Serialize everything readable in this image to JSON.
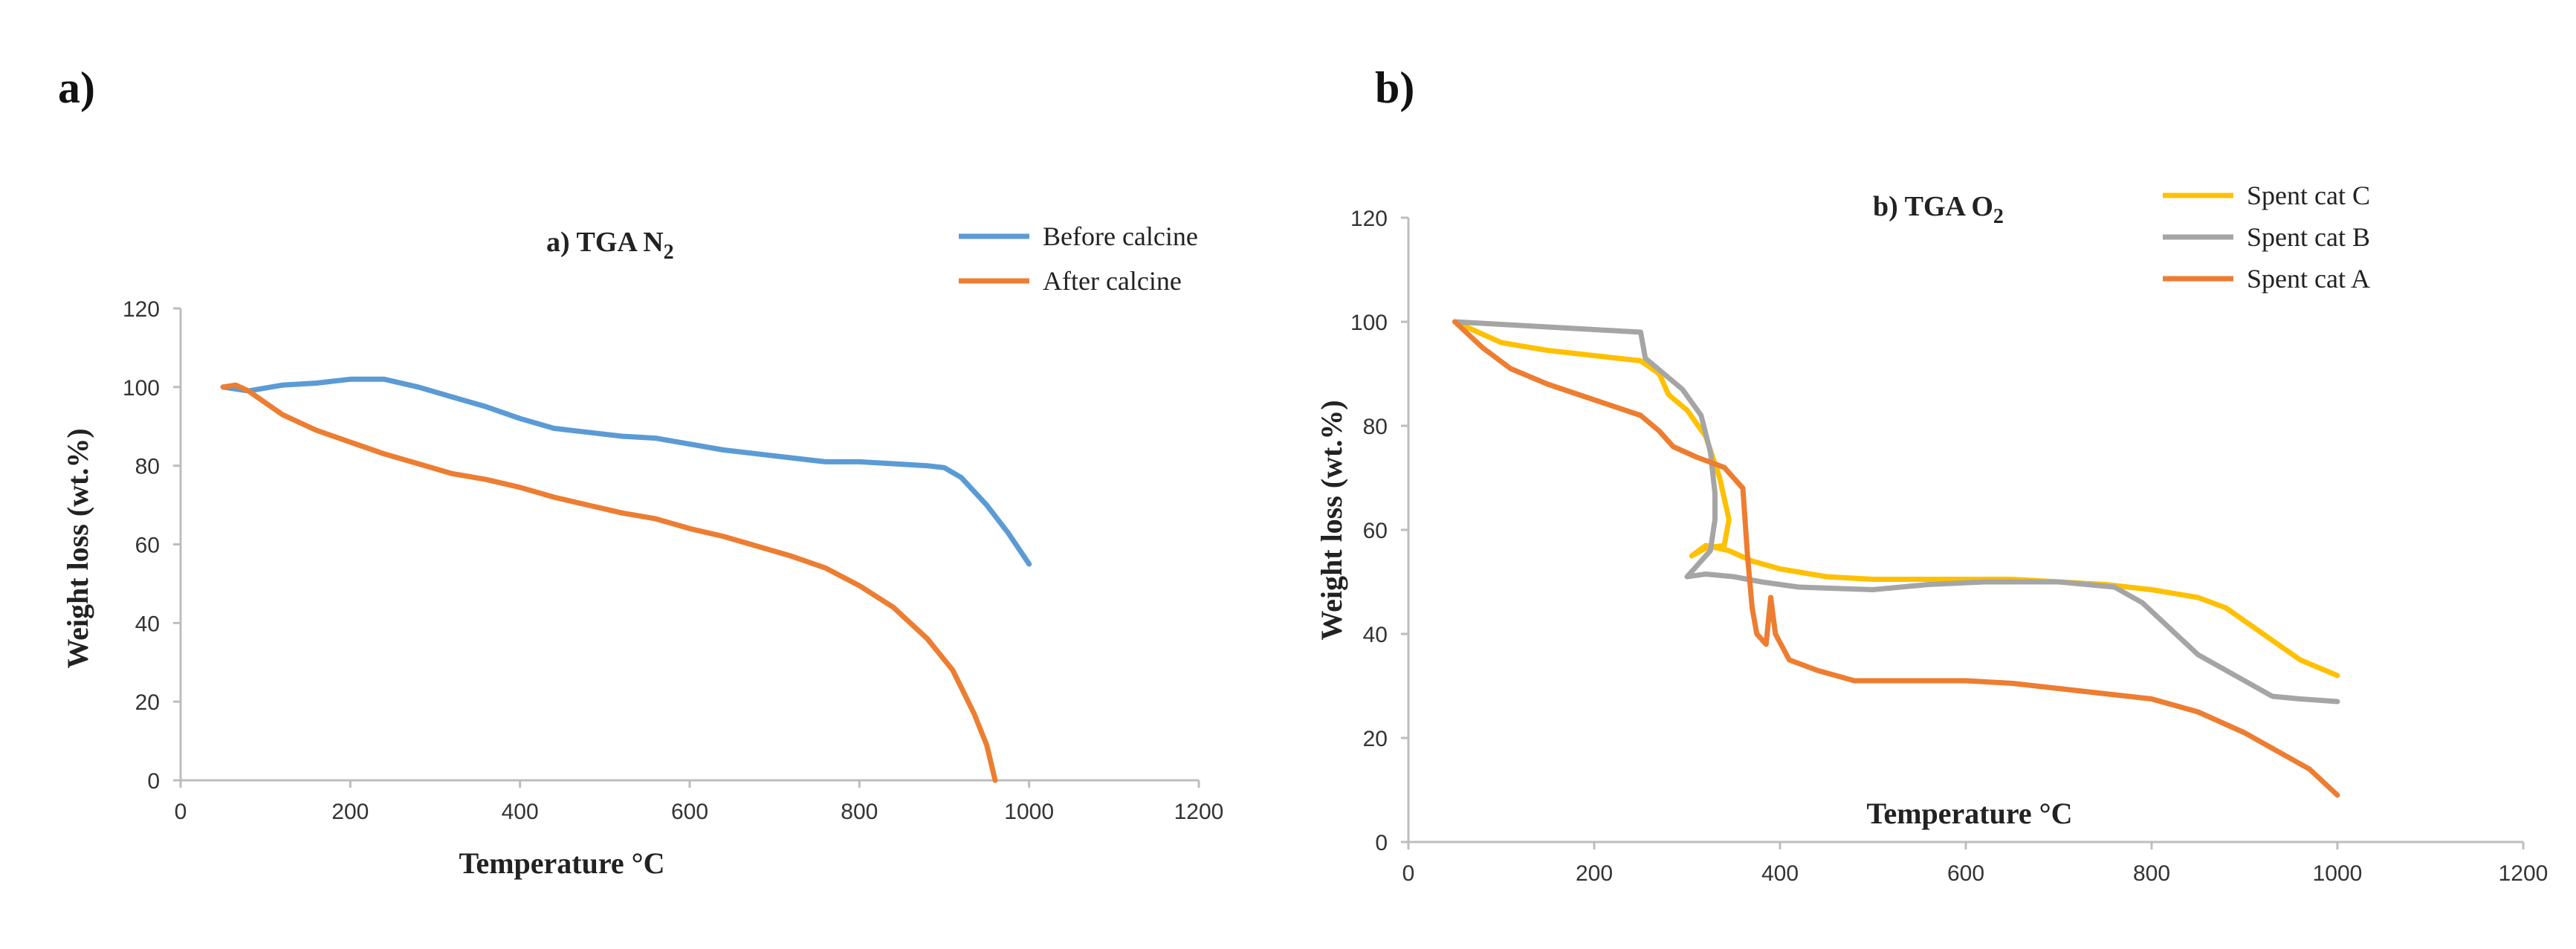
{
  "chart_data": [
    {
      "type": "line",
      "panel_label": "a)",
      "title": "a) TGA N",
      "title_subscript": "2",
      "xlabel": "Temperature °C",
      "ylabel": "Weight loss (wt.%)",
      "xlim": [
        0,
        1200
      ],
      "ylim": [
        0,
        120
      ],
      "xticks": [
        0,
        200,
        400,
        600,
        800,
        1000,
        1200
      ],
      "yticks": [
        0,
        20,
        40,
        60,
        80,
        100,
        120
      ],
      "legend_position": "top-right",
      "series": [
        {
          "name": "Before calcine",
          "color": "#5b9bd5",
          "points": [
            [
              50,
              100
            ],
            [
              80,
              99
            ],
            [
              120,
              100.5
            ],
            [
              160,
              101
            ],
            [
              200,
              102
            ],
            [
              240,
              102
            ],
            [
              280,
              100
            ],
            [
              320,
              97.5
            ],
            [
              360,
              95
            ],
            [
              400,
              92
            ],
            [
              440,
              89.5
            ],
            [
              480,
              88.5
            ],
            [
              520,
              87.5
            ],
            [
              560,
              87
            ],
            [
              600,
              85.5
            ],
            [
              640,
              84
            ],
            [
              680,
              83
            ],
            [
              720,
              82
            ],
            [
              760,
              81
            ],
            [
              800,
              81
            ],
            [
              840,
              80.5
            ],
            [
              880,
              80
            ],
            [
              900,
              79.5
            ],
            [
              920,
              77
            ],
            [
              950,
              70
            ],
            [
              975,
              63
            ],
            [
              1000,
              55
            ]
          ]
        },
        {
          "name": "After calcine",
          "color": "#ed7d31",
          "points": [
            [
              50,
              100
            ],
            [
              65,
              100.5
            ],
            [
              80,
              99
            ],
            [
              120,
              93
            ],
            [
              160,
              89
            ],
            [
              200,
              86
            ],
            [
              240,
              83
            ],
            [
              280,
              80.5
            ],
            [
              320,
              78
            ],
            [
              360,
              76.5
            ],
            [
              400,
              74.5
            ],
            [
              440,
              72
            ],
            [
              480,
              70
            ],
            [
              520,
              68
            ],
            [
              560,
              66.5
            ],
            [
              600,
              64
            ],
            [
              640,
              62
            ],
            [
              680,
              59.5
            ],
            [
              720,
              57
            ],
            [
              760,
              54
            ],
            [
              800,
              49.5
            ],
            [
              840,
              44
            ],
            [
              880,
              36
            ],
            [
              910,
              28
            ],
            [
              935,
              17
            ],
            [
              950,
              9
            ],
            [
              960,
              0
            ]
          ]
        }
      ]
    },
    {
      "type": "line",
      "panel_label": "b)",
      "title": "b) TGA O",
      "title_subscript": "2",
      "xlabel": "Temperature °C",
      "ylabel": "Weight loss (wt.%)",
      "xlim": [
        0,
        1200
      ],
      "ylim": [
        0,
        120
      ],
      "xticks": [
        0,
        200,
        400,
        600,
        800,
        1000,
        1200
      ],
      "yticks": [
        0,
        20,
        40,
        60,
        80,
        100,
        120
      ],
      "legend_position": "top-right",
      "series": [
        {
          "name": "Spent cat C",
          "color": "#ffc000",
          "points": [
            [
              50,
              100
            ],
            [
              100,
              96
            ],
            [
              150,
              94.5
            ],
            [
              200,
              93.5
            ],
            [
              250,
              92.5
            ],
            [
              270,
              90
            ],
            [
              280,
              86
            ],
            [
              300,
              83
            ],
            [
              320,
              78
            ],
            [
              335,
              70
            ],
            [
              345,
              62
            ],
            [
              340,
              57
            ],
            [
              320,
              56.5
            ],
            [
              305,
              55
            ],
            [
              320,
              57
            ],
            [
              345,
              56
            ],
            [
              370,
              54
            ],
            [
              400,
              52.5
            ],
            [
              450,
              51
            ],
            [
              500,
              50.5
            ],
            [
              550,
              50.5
            ],
            [
              600,
              50.5
            ],
            [
              650,
              50.5
            ],
            [
              700,
              50
            ],
            [
              750,
              49.5
            ],
            [
              800,
              48.5
            ],
            [
              850,
              47
            ],
            [
              880,
              45
            ],
            [
              920,
              40
            ],
            [
              960,
              35
            ],
            [
              1000,
              32
            ]
          ]
        },
        {
          "name": "Spent cat B",
          "color": "#a5a5a5",
          "points": [
            [
              50,
              100
            ],
            [
              100,
              99.5
            ],
            [
              150,
              99
            ],
            [
              200,
              98.5
            ],
            [
              250,
              98
            ],
            [
              255,
              93
            ],
            [
              275,
              90
            ],
            [
              295,
              87
            ],
            [
              315,
              82
            ],
            [
              325,
              75
            ],
            [
              330,
              67
            ],
            [
              330,
              62
            ],
            [
              325,
              56
            ],
            [
              315,
              54
            ],
            [
              300,
              51
            ],
            [
              320,
              51.5
            ],
            [
              350,
              51
            ],
            [
              380,
              50
            ],
            [
              420,
              49
            ],
            [
              500,
              48.5
            ],
            [
              560,
              49.5
            ],
            [
              620,
              50
            ],
            [
              700,
              50
            ],
            [
              760,
              49
            ],
            [
              790,
              46
            ],
            [
              820,
              41
            ],
            [
              850,
              36
            ],
            [
              900,
              31
            ],
            [
              930,
              28
            ],
            [
              960,
              27.5
            ],
            [
              1000,
              27
            ]
          ]
        },
        {
          "name": "Spent cat A",
          "color": "#ed7d31",
          "points": [
            [
              50,
              100
            ],
            [
              80,
              95
            ],
            [
              110,
              91
            ],
            [
              150,
              88
            ],
            [
              200,
              85
            ],
            [
              250,
              82
            ],
            [
              270,
              79
            ],
            [
              285,
              76
            ],
            [
              310,
              74
            ],
            [
              340,
              72
            ],
            [
              360,
              68
            ],
            [
              365,
              55
            ],
            [
              370,
              45
            ],
            [
              375,
              40
            ],
            [
              385,
              38
            ],
            [
              390,
              47
            ],
            [
              395,
              40
            ],
            [
              410,
              35
            ],
            [
              440,
              33
            ],
            [
              480,
              31
            ],
            [
              520,
              31
            ],
            [
              560,
              31
            ],
            [
              600,
              31
            ],
            [
              650,
              30.5
            ],
            [
              700,
              29.5
            ],
            [
              750,
              28.5
            ],
            [
              800,
              27.5
            ],
            [
              850,
              25
            ],
            [
              900,
              21
            ],
            [
              940,
              17
            ],
            [
              970,
              14
            ],
            [
              1000,
              9
            ]
          ]
        }
      ]
    }
  ]
}
